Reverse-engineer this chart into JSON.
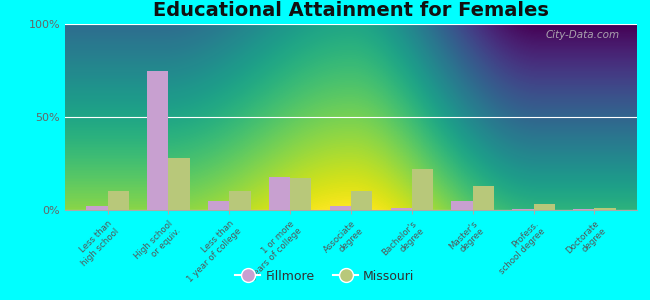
{
  "title": "Educational Attainment for Females",
  "categories": [
    "Less than\nhigh school",
    "High school\nor equiv.",
    "Less than\n1 year of college",
    "1 or more\nyears of college",
    "Associate\ndegree",
    "Bachelor's\ndegree",
    "Master's\ndegree",
    "Profess.\nschool degree",
    "Doctorate\ndegree"
  ],
  "fillmore_values": [
    2.0,
    75.0,
    5.0,
    18.0,
    2.0,
    1.0,
    5.0,
    0.3,
    0.3
  ],
  "missouri_values": [
    10.0,
    28.0,
    10.0,
    17.0,
    10.0,
    22.0,
    13.0,
    3.0,
    1.0
  ],
  "fillmore_color": "#c8a0d0",
  "missouri_color": "#b8c87a",
  "bg_top_color": "#c8d8b0",
  "bg_bottom_color": "#e8f0d8",
  "outer_background": "#00ffff",
  "title_fontsize": 14,
  "ylim": [
    0,
    100
  ],
  "bar_width": 0.35,
  "watermark_text": "City-Data.com",
  "legend_fillmore": "Fillmore",
  "legend_missouri": "Missouri"
}
